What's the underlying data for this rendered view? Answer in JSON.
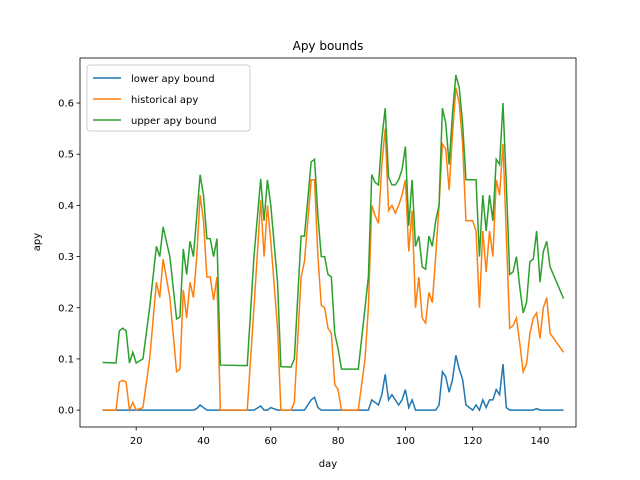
{
  "chart_data": {
    "type": "line",
    "title": "Apy bounds",
    "x_label": "day",
    "y_label": "apy",
    "x": [
      10,
      14,
      15,
      16,
      17,
      18,
      19,
      20,
      22,
      24,
      26,
      27,
      28,
      30,
      32,
      33,
      34,
      35,
      36,
      37,
      38,
      39,
      40,
      41,
      42,
      43,
      44,
      45,
      53,
      55,
      57,
      58,
      59,
      60,
      62,
      63,
      66,
      67,
      69,
      70,
      72,
      73,
      74,
      75,
      76,
      77,
      78,
      79,
      80,
      81,
      86,
      88,
      89,
      90,
      91,
      92,
      93,
      94,
      95,
      96,
      97,
      98,
      99,
      100,
      101,
      102,
      103,
      104,
      105,
      106,
      107,
      108,
      109,
      110,
      111,
      112,
      113,
      114,
      115,
      116,
      117,
      118,
      120,
      121,
      122,
      123,
      124,
      125,
      126,
      127,
      128,
      129,
      130,
      131,
      132,
      133,
      134,
      135,
      136,
      137,
      138,
      139,
      140,
      141,
      142,
      143,
      147
    ],
    "series": [
      {
        "name": "lower apy bound",
        "color": "#1f77b4",
        "values": [
          0,
          0,
          0,
          0,
          0,
          0,
          0,
          0,
          0,
          0,
          0,
          0,
          0,
          0,
          0,
          0,
          0,
          0,
          0,
          0,
          0.003,
          0.01,
          0.005,
          0,
          0,
          0,
          0,
          0,
          0,
          0,
          0.008,
          0,
          0,
          0.005,
          0,
          0,
          0,
          0,
          0,
          0,
          0.02,
          0.025,
          0.005,
          0,
          0,
          0,
          0,
          0,
          0,
          0,
          0,
          0,
          0,
          0.02,
          0.015,
          0.01,
          0.03,
          0.07,
          0.02,
          0.03,
          0.02,
          0.01,
          0.02,
          0.04,
          0.005,
          0.02,
          0,
          0,
          0,
          0,
          0,
          0,
          0,
          0.01,
          0.075,
          0.065,
          0.035,
          0.06,
          0.107,
          0.08,
          0.06,
          0.01,
          0,
          0.01,
          0,
          0.02,
          0.005,
          0.02,
          0.02,
          0.04,
          0.03,
          0.09,
          0.005,
          0,
          0,
          0,
          0,
          0,
          0,
          0,
          0,
          0.003,
          0,
          0,
          0,
          0,
          0
        ]
      },
      {
        "name": "historical apy",
        "color": "#ff7f0e",
        "values": [
          0,
          0,
          0.055,
          0.058,
          0.055,
          0,
          0.015,
          0,
          0.005,
          0.1,
          0.25,
          0.22,
          0.295,
          0.22,
          0.075,
          0.08,
          0.235,
          0.18,
          0.25,
          0.22,
          0.3,
          0.42,
          0.37,
          0.26,
          0.26,
          0.215,
          0.26,
          0,
          0,
          0.2,
          0.41,
          0.3,
          0.4,
          0.33,
          0.16,
          0,
          0,
          0.015,
          0.26,
          0.29,
          0.45,
          0.45,
          0.3,
          0.205,
          0.2,
          0.16,
          0.15,
          0.05,
          0.04,
          0,
          0,
          0.1,
          0.2,
          0.4,
          0.38,
          0.365,
          0.48,
          0.55,
          0.39,
          0.4,
          0.385,
          0.4,
          0.42,
          0.45,
          0.31,
          0.39,
          0.2,
          0.26,
          0.18,
          0.17,
          0.23,
          0.21,
          0.3,
          0.4,
          0.52,
          0.51,
          0.43,
          0.54,
          0.63,
          0.6,
          0.52,
          0.37,
          0.37,
          0.35,
          0.2,
          0.35,
          0.27,
          0.35,
          0.3,
          0.45,
          0.42,
          0.52,
          0.34,
          0.16,
          0.165,
          0.18,
          0.13,
          0.075,
          0.09,
          0.15,
          0.18,
          0.19,
          0.14,
          0.2,
          0.22,
          0.15,
          0.113
        ]
      },
      {
        "name": "upper apy bound",
        "color": "#2ca02c",
        "values": [
          0.093,
          0.092,
          0.155,
          0.16,
          0.155,
          0.092,
          0.113,
          0.092,
          0.1,
          0.2,
          0.32,
          0.3,
          0.358,
          0.3,
          0.178,
          0.182,
          0.315,
          0.265,
          0.33,
          0.3,
          0.38,
          0.46,
          0.42,
          0.335,
          0.335,
          0.3,
          0.335,
          0.088,
          0.087,
          0.3,
          0.452,
          0.37,
          0.45,
          0.4,
          0.25,
          0.085,
          0.084,
          0.1,
          0.34,
          0.34,
          0.485,
          0.49,
          0.38,
          0.3,
          0.3,
          0.265,
          0.26,
          0.15,
          0.12,
          0.08,
          0.08,
          0.2,
          0.26,
          0.46,
          0.445,
          0.44,
          0.53,
          0.59,
          0.455,
          0.44,
          0.44,
          0.45,
          0.47,
          0.515,
          0.36,
          0.45,
          0.32,
          0.34,
          0.28,
          0.275,
          0.34,
          0.32,
          0.37,
          0.4,
          0.59,
          0.56,
          0.48,
          0.58,
          0.655,
          0.63,
          0.56,
          0.45,
          0.45,
          0.45,
          0.3,
          0.42,
          0.35,
          0.42,
          0.37,
          0.49,
          0.48,
          0.6,
          0.44,
          0.265,
          0.27,
          0.3,
          0.24,
          0.19,
          0.21,
          0.29,
          0.295,
          0.35,
          0.25,
          0.31,
          0.33,
          0.28,
          0.218
        ]
      }
    ],
    "xlim": [
      3.3,
      150.7
    ],
    "xticks": [
      20,
      40,
      60,
      80,
      100,
      120,
      140
    ],
    "ylim": [
      -0.033,
      0.688
    ],
    "yticks": [
      {
        "value": 0,
        "label": "0.0"
      },
      0.1,
      0.2,
      0.3,
      0.4,
      0.5,
      0.6
    ],
    "legend": "upper left"
  }
}
